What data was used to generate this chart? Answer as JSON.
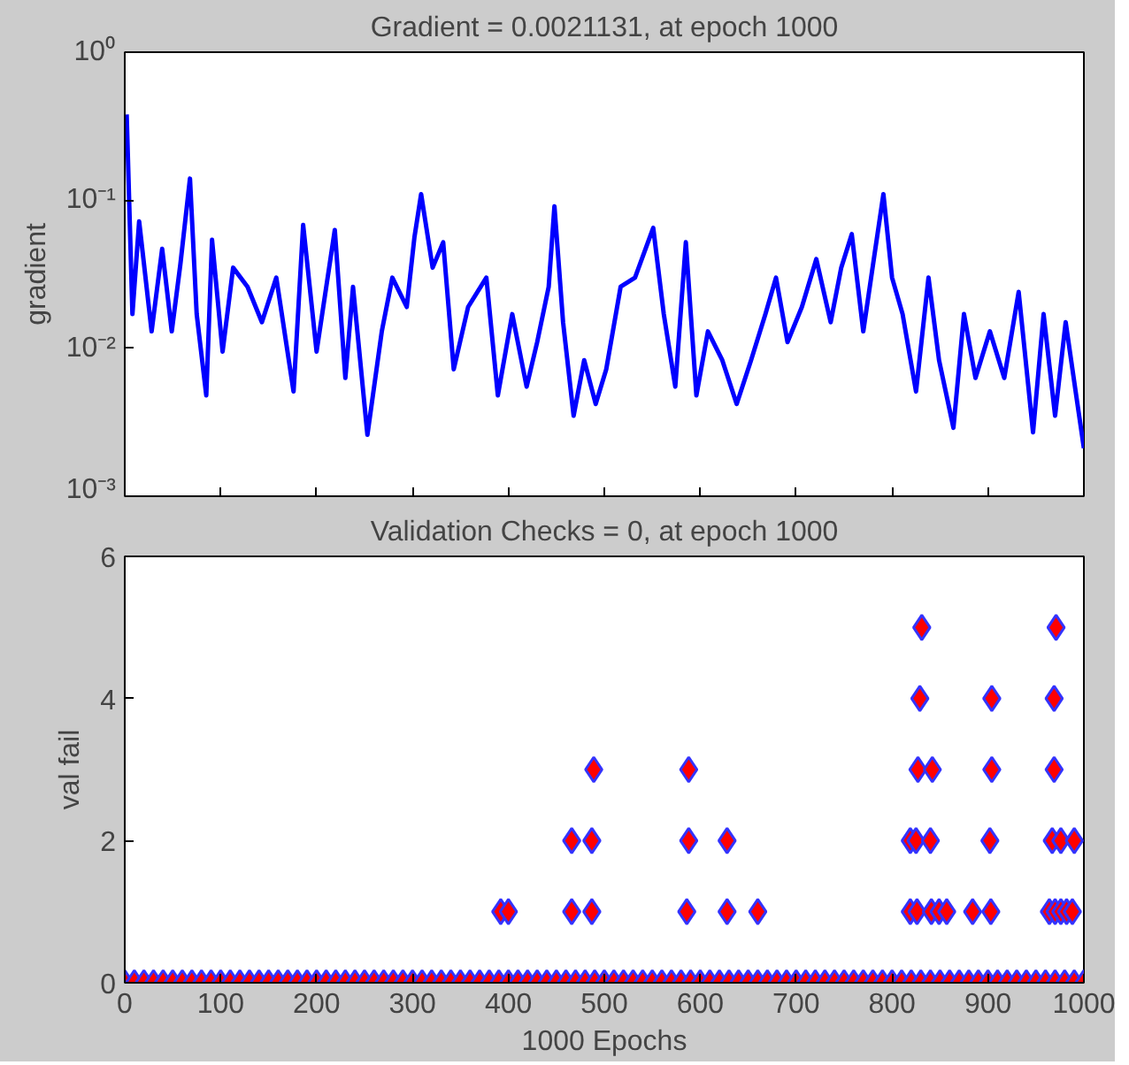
{
  "chart_data": [
    {
      "type": "line",
      "title": "Gradient = 0.0021131, at epoch 1000",
      "ylabel": "gradient",
      "log": "y",
      "grid": false,
      "tick_labels": "y",
      "line_style": "solid",
      "marker": "none",
      "xlim": [
        0,
        1000
      ],
      "xticks": [
        {
          "value": 0,
          "label": null
        },
        {
          "value": 100,
          "label": null
        },
        {
          "value": 200,
          "label": null
        },
        {
          "value": 300,
          "label": null
        },
        {
          "value": 400,
          "label": null
        },
        {
          "value": 500,
          "label": null
        },
        {
          "value": 600,
          "label": null
        },
        {
          "value": 700,
          "label": null
        },
        {
          "value": 800,
          "label": null
        },
        {
          "value": 900,
          "label": null
        },
        {
          "value": 1000,
          "label": null
        }
      ],
      "ylim": [
        0.001,
        1
      ],
      "yticks": [
        {
          "value": 0.001,
          "label": "10⁻³"
        },
        {
          "value": 0.01,
          "label": "10⁻²"
        },
        {
          "value": 0.1,
          "label": "10⁻¹"
        },
        {
          "value": 1,
          "label": "10⁰"
        }
      ],
      "x": [
        2,
        8,
        15,
        28,
        39,
        49,
        58,
        68,
        75,
        85,
        91,
        102,
        113,
        128,
        143,
        158,
        176,
        186,
        200,
        219,
        230,
        238,
        253,
        268,
        279,
        294,
        302,
        309,
        321,
        332,
        343,
        358,
        377,
        389,
        404,
        419,
        430,
        442,
        448,
        457,
        468,
        479,
        491,
        502,
        517,
        532,
        551,
        562,
        574,
        585,
        596,
        608,
        623,
        638,
        653,
        668,
        679,
        691,
        706,
        721,
        736,
        747,
        758,
        770,
        781,
        791,
        800,
        811,
        825,
        838,
        849,
        864,
        875,
        887,
        902,
        917,
        932,
        947,
        958,
        970,
        981,
        992,
        1000
      ],
      "series": [
        {
          "color": "#0000ff",
          "values": [
            0.38,
            0.017,
            0.072,
            0.013,
            0.047,
            0.013,
            0.037,
            0.14,
            0.017,
            0.0048,
            0.054,
            0.0095,
            0.035,
            0.026,
            0.015,
            0.03,
            0.0051,
            0.068,
            0.0095,
            0.063,
            0.0063,
            0.026,
            0.0026,
            0.013,
            0.03,
            0.019,
            0.056,
            0.11,
            0.035,
            0.052,
            0.0072,
            0.019,
            0.03,
            0.0048,
            0.017,
            0.0055,
            0.011,
            0.026,
            0.091,
            0.015,
            0.0035,
            0.0083,
            0.0042,
            0.0072,
            0.026,
            0.03,
            0.065,
            0.017,
            0.0055,
            0.052,
            0.0048,
            0.013,
            0.0083,
            0.0042,
            0.0083,
            0.017,
            0.03,
            0.011,
            0.019,
            0.04,
            0.015,
            0.035,
            0.059,
            0.013,
            0.04,
            0.11,
            0.03,
            0.017,
            0.0051,
            0.03,
            0.0083,
            0.0029,
            0.017,
            0.0063,
            0.013,
            0.0063,
            0.024,
            0.0027,
            0.017,
            0.0035,
            0.015,
            0.0048,
            0.0021131
          ]
        }
      ]
    },
    {
      "type": "scatter",
      "title": "Validation Checks = 0, at epoch 1000",
      "xlabel": "1000 Epochs",
      "ylabel": "val fail",
      "grid": false,
      "marker": "diamond",
      "xlim": [
        0,
        1000
      ],
      "xticks": [
        0,
        100,
        200,
        300,
        400,
        500,
        600,
        700,
        800,
        900,
        1000
      ],
      "ylim": [
        0,
        6
      ],
      "yticks": [
        0,
        2,
        4,
        6
      ],
      "series": [
        {
          "color": "#ff0000",
          "x": [
            0,
            10,
            20,
            30,
            40,
            50,
            60,
            70,
            80,
            90,
            100,
            110,
            120,
            130,
            140,
            150,
            160,
            170,
            180,
            190,
            200,
            210,
            220,
            230,
            240,
            250,
            260,
            270,
            280,
            290,
            300,
            310,
            320,
            330,
            340,
            350,
            360,
            370,
            380,
            390,
            400,
            410,
            420,
            430,
            440,
            450,
            460,
            470,
            480,
            490,
            500,
            510,
            520,
            530,
            540,
            550,
            560,
            570,
            580,
            590,
            600,
            610,
            620,
            630,
            640,
            650,
            660,
            670,
            680,
            690,
            700,
            710,
            720,
            730,
            740,
            750,
            760,
            770,
            780,
            790,
            800,
            810,
            820,
            830,
            840,
            850,
            860,
            870,
            880,
            890,
            900,
            910,
            920,
            930,
            940,
            950,
            960,
            970,
            980,
            990,
            1000,
            392,
            400,
            466,
            487,
            586,
            628,
            660,
            819,
            826,
            841,
            849,
            857,
            884,
            903,
            964,
            970,
            976,
            982,
            988,
            466,
            487,
            588,
            628,
            819,
            825,
            840,
            902,
            967,
            976,
            990,
            489,
            588,
            827,
            842,
            904,
            969,
            829,
            904,
            969,
            831,
            971
          ],
          "values": [
            0,
            0,
            0,
            0,
            0,
            0,
            0,
            0,
            0,
            0,
            0,
            0,
            0,
            0,
            0,
            0,
            0,
            0,
            0,
            0,
            0,
            0,
            0,
            0,
            0,
            0,
            0,
            0,
            0,
            0,
            0,
            0,
            0,
            0,
            0,
            0,
            0,
            0,
            0,
            0,
            0,
            0,
            0,
            0,
            0,
            0,
            0,
            0,
            0,
            0,
            0,
            0,
            0,
            0,
            0,
            0,
            0,
            0,
            0,
            0,
            0,
            0,
            0,
            0,
            0,
            0,
            0,
            0,
            0,
            0,
            0,
            0,
            0,
            0,
            0,
            0,
            0,
            0,
            0,
            0,
            0,
            0,
            0,
            0,
            0,
            0,
            0,
            0,
            0,
            0,
            0,
            0,
            0,
            0,
            0,
            0,
            0,
            0,
            0,
            0,
            0,
            1,
            1,
            1,
            1,
            1,
            1,
            1,
            1,
            1,
            1,
            1,
            1,
            1,
            1,
            1,
            1,
            1,
            1,
            1,
            2,
            2,
            2,
            2,
            2,
            2,
            2,
            2,
            2,
            2,
            2,
            3,
            3,
            3,
            3,
            3,
            3,
            4,
            4,
            4,
            5,
            5
          ]
        }
      ]
    }
  ]
}
